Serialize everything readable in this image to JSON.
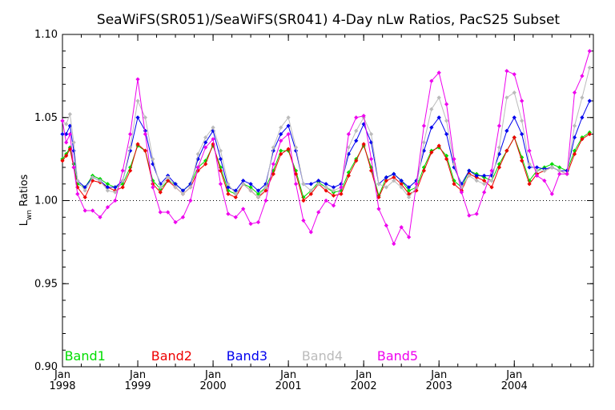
{
  "chart_data": {
    "type": "line",
    "title": "SeaWiFS(SR051)/SeaWiFS(SR041) 4-Day nLw Ratios, PacS25 Subset",
    "ylabel_main": "L",
    "ylabel_sub": "wn",
    "ylabel_rest": " Ratios",
    "xlabel": "",
    "xlim": [
      1998.0,
      2005.05
    ],
    "ylim": [
      0.9,
      1.1
    ],
    "yticks": [
      "0.90",
      "0.95",
      "1.00",
      "1.05",
      "1.10"
    ],
    "reference_line": 1.0,
    "xticks": [
      {
        "top": "Jan",
        "bottom": "1998",
        "x": 1998.0
      },
      {
        "top": "Jan",
        "bottom": "1999",
        "x": 1999.0
      },
      {
        "top": "Jan",
        "bottom": "2000",
        "x": 2000.0
      },
      {
        "top": "Jan",
        "bottom": "2001",
        "x": 2001.0
      },
      {
        "top": "Jan",
        "bottom": "2002",
        "x": 2002.0
      },
      {
        "top": "Jan",
        "bottom": "2003",
        "x": 2003.0
      },
      {
        "top": "Jan",
        "bottom": "2004",
        "x": 2004.0
      }
    ],
    "series": [
      {
        "name": "Band1",
        "color": "#00dd00",
        "dx": 1998.3,
        "dy": 0.9,
        "x": [
          1998.0,
          1998.05,
          1998.1,
          1998.15,
          1998.2,
          1998.3,
          1998.4,
          1998.5,
          1998.6,
          1998.7,
          1998.8,
          1998.9,
          1999.0,
          1999.1,
          1999.2,
          1999.3,
          1999.4,
          1999.5,
          1999.6,
          1999.7,
          1999.8,
          1999.9,
          2000.0,
          2000.1,
          2000.2,
          2000.3,
          2000.4,
          2000.5,
          2000.6,
          2000.7,
          2000.8,
          2000.9,
          2001.0,
          2001.1,
          2001.2,
          2001.3,
          2001.4,
          2001.5,
          2001.6,
          2001.7,
          2001.8,
          2001.9,
          2002.0,
          2002.1,
          2002.2,
          2002.3,
          2002.4,
          2002.5,
          2002.6,
          2002.7,
          2002.8,
          2002.9,
          2003.0,
          2003.1,
          2003.2,
          2003.3,
          2003.4,
          2003.5,
          2003.6,
          2003.7,
          2003.8,
          2003.9,
          2004.0,
          2004.1,
          2004.2,
          2004.3,
          2004.4,
          2004.5,
          2004.6,
          2004.7,
          2004.8,
          2004.9,
          2005.0
        ],
        "y": [
          1.025,
          1.028,
          1.032,
          1.022,
          1.01,
          1.008,
          1.015,
          1.013,
          1.01,
          1.008,
          1.01,
          1.02,
          1.033,
          1.03,
          1.012,
          1.007,
          1.012,
          1.01,
          1.006,
          1.01,
          1.02,
          1.024,
          1.033,
          1.02,
          1.006,
          1.004,
          1.01,
          1.008,
          1.004,
          1.008,
          1.018,
          1.03,
          1.03,
          1.018,
          1.002,
          1.006,
          1.011,
          1.008,
          1.005,
          1.006,
          1.017,
          1.025,
          1.033,
          1.02,
          1.003,
          1.014,
          1.016,
          1.012,
          1.006,
          1.008,
          1.02,
          1.03,
          1.032,
          1.027,
          1.012,
          1.008,
          1.018,
          1.016,
          1.014,
          1.012,
          1.022,
          1.03,
          1.038,
          1.026,
          1.012,
          1.018,
          1.02,
          1.022,
          1.02,
          1.018,
          1.03,
          1.038,
          1.041
        ]
      },
      {
        "name": "Band2",
        "color": "#ee0000",
        "dx": 1999.45,
        "dy": 0.9,
        "x": [
          1998.0,
          1998.05,
          1998.1,
          1998.15,
          1998.2,
          1998.3,
          1998.4,
          1998.5,
          1998.6,
          1998.7,
          1998.8,
          1998.9,
          1999.0,
          1999.1,
          1999.2,
          1999.3,
          1999.4,
          1999.5,
          1999.6,
          1999.7,
          1999.8,
          1999.9,
          2000.0,
          2000.1,
          2000.2,
          2000.3,
          2000.4,
          2000.5,
          2000.6,
          2000.7,
          2000.8,
          2000.9,
          2001.0,
          2001.1,
          2001.2,
          2001.3,
          2001.4,
          2001.5,
          2001.6,
          2001.7,
          2001.8,
          2001.9,
          2002.0,
          2002.1,
          2002.2,
          2002.3,
          2002.4,
          2002.5,
          2002.6,
          2002.7,
          2002.8,
          2002.9,
          2003.0,
          2003.1,
          2003.2,
          2003.3,
          2003.4,
          2003.5,
          2003.6,
          2003.7,
          2003.8,
          2003.9,
          2004.0,
          2004.1,
          2004.2,
          2004.3,
          2004.4,
          2004.5,
          2004.6,
          2004.7,
          2004.8,
          2004.9,
          2005.0
        ],
        "y": [
          1.024,
          1.027,
          1.031,
          1.02,
          1.008,
          1.002,
          1.012,
          1.011,
          1.008,
          1.006,
          1.008,
          1.018,
          1.034,
          1.03,
          1.01,
          1.005,
          1.012,
          1.008,
          1.004,
          1.008,
          1.018,
          1.022,
          1.034,
          1.018,
          1.004,
          1.002,
          1.01,
          1.006,
          1.002,
          1.006,
          1.016,
          1.028,
          1.031,
          1.016,
          1.0,
          1.004,
          1.01,
          1.006,
          1.003,
          1.004,
          1.015,
          1.024,
          1.034,
          1.018,
          1.002,
          1.012,
          1.014,
          1.01,
          1.004,
          1.006,
          1.018,
          1.029,
          1.033,
          1.025,
          1.01,
          1.006,
          1.016,
          1.014,
          1.012,
          1.008,
          1.02,
          1.03,
          1.038,
          1.024,
          1.01,
          1.016,
          1.018,
          1.02,
          1.018,
          1.016,
          1.028,
          1.037,
          1.04
        ]
      },
      {
        "name": "Band3",
        "color": "#0000ee",
        "dx": 2000.45,
        "dy": 0.9,
        "x": [
          1998.0,
          1998.05,
          1998.1,
          1998.15,
          1998.2,
          1998.3,
          1998.4,
          1998.5,
          1998.6,
          1998.7,
          1998.8,
          1998.9,
          1999.0,
          1999.1,
          1999.2,
          1999.3,
          1999.4,
          1999.5,
          1999.6,
          1999.7,
          1999.8,
          1999.9,
          2000.0,
          2000.1,
          2000.2,
          2000.3,
          2000.4,
          2000.5,
          2000.6,
          2000.7,
          2000.8,
          2000.9,
          2001.0,
          2001.1,
          2001.2,
          2001.3,
          2001.4,
          2001.5,
          2001.6,
          2001.7,
          2001.8,
          2001.9,
          2002.0,
          2002.1,
          2002.2,
          2002.3,
          2002.4,
          2002.5,
          2002.6,
          2002.7,
          2002.8,
          2002.9,
          2003.0,
          2003.1,
          2003.2,
          2003.3,
          2003.4,
          2003.5,
          2003.6,
          2003.7,
          2003.8,
          2003.9,
          2004.0,
          2004.1,
          2004.2,
          2004.3,
          2004.4,
          2004.5,
          2004.6,
          2004.7,
          2004.8,
          2004.9,
          2005.0
        ],
        "y": [
          1.04,
          1.04,
          1.045,
          1.03,
          1.012,
          1.008,
          1.014,
          1.012,
          1.008,
          1.008,
          1.012,
          1.03,
          1.05,
          1.042,
          1.022,
          1.01,
          1.015,
          1.01,
          1.006,
          1.01,
          1.025,
          1.035,
          1.042,
          1.025,
          1.008,
          1.006,
          1.012,
          1.01,
          1.006,
          1.01,
          1.03,
          1.04,
          1.045,
          1.03,
          1.01,
          1.01,
          1.012,
          1.01,
          1.008,
          1.01,
          1.028,
          1.036,
          1.046,
          1.035,
          1.01,
          1.014,
          1.016,
          1.012,
          1.008,
          1.012,
          1.03,
          1.044,
          1.05,
          1.04,
          1.02,
          1.01,
          1.018,
          1.015,
          1.015,
          1.015,
          1.028,
          1.042,
          1.05,
          1.04,
          1.02,
          1.02,
          1.019,
          1.02,
          1.018,
          1.018,
          1.038,
          1.05,
          1.06
        ]
      },
      {
        "name": "Band4",
        "color": "#bbbbbb",
        "dx": 2001.45,
        "dy": 0.9,
        "x": [
          1998.0,
          1998.05,
          1998.1,
          1998.15,
          1998.2,
          1998.3,
          1998.4,
          1998.5,
          1998.6,
          1998.7,
          1998.8,
          1998.9,
          1999.0,
          1999.1,
          1999.2,
          1999.3,
          1999.4,
          1999.5,
          1999.6,
          1999.7,
          1999.8,
          1999.9,
          2000.0,
          2000.1,
          2000.2,
          2000.3,
          2000.4,
          2000.5,
          2000.6,
          2000.7,
          2000.8,
          2000.9,
          2001.0,
          2001.1,
          2001.2,
          2001.3,
          2001.4,
          2001.5,
          2001.6,
          2001.7,
          2001.8,
          2001.9,
          2002.0,
          2002.1,
          2002.2,
          2002.3,
          2002.4,
          2002.5,
          2002.6,
          2002.7,
          2002.8,
          2002.9,
          2003.0,
          2003.1,
          2003.2,
          2003.3,
          2003.4,
          2003.5,
          2003.6,
          2003.7,
          2003.8,
          2003.9,
          2004.0,
          2004.1,
          2004.2,
          2004.3,
          2004.4,
          2004.5,
          2004.6,
          2004.7,
          2004.8,
          2004.9,
          2005.0
        ],
        "y": [
          1.048,
          1.046,
          1.052,
          1.035,
          1.012,
          1.006,
          1.014,
          1.012,
          1.006,
          1.005,
          1.012,
          1.032,
          1.06,
          1.05,
          1.025,
          1.008,
          1.014,
          1.008,
          1.004,
          1.008,
          1.028,
          1.038,
          1.044,
          1.03,
          1.01,
          1.004,
          1.01,
          1.006,
          1.002,
          1.008,
          1.032,
          1.044,
          1.05,
          1.032,
          1.01,
          1.006,
          1.01,
          1.008,
          1.006,
          1.008,
          1.032,
          1.042,
          1.05,
          1.04,
          1.01,
          1.008,
          1.012,
          1.008,
          1.002,
          1.008,
          1.035,
          1.055,
          1.062,
          1.048,
          1.022,
          1.008,
          1.015,
          1.012,
          1.01,
          1.012,
          1.032,
          1.062,
          1.065,
          1.048,
          1.022,
          1.018,
          1.018,
          1.02,
          1.018,
          1.016,
          1.045,
          1.062,
          1.08
        ]
      },
      {
        "name": "Band5",
        "color": "#ee00ee",
        "dx": 2002.45,
        "dy": 0.9,
        "x": [
          1998.0,
          1998.05,
          1998.1,
          1998.15,
          1998.2,
          1998.3,
          1998.4,
          1998.5,
          1998.6,
          1998.7,
          1998.8,
          1998.9,
          1999.0,
          1999.1,
          1999.2,
          1999.3,
          1999.4,
          1999.5,
          1999.6,
          1999.7,
          1999.8,
          1999.9,
          2000.0,
          2000.1,
          2000.2,
          2000.3,
          2000.4,
          2000.5,
          2000.6,
          2000.7,
          2000.8,
          2000.9,
          2001.0,
          2001.1,
          2001.2,
          2001.3,
          2001.4,
          2001.5,
          2001.6,
          2001.7,
          2001.8,
          2001.9,
          2002.0,
          2002.1,
          2002.2,
          2002.3,
          2002.4,
          2002.5,
          2002.6,
          2002.7,
          2002.8,
          2002.9,
          2003.0,
          2003.1,
          2003.2,
          2003.3,
          2003.4,
          2003.5,
          2003.6,
          2003.7,
          2003.8,
          2003.9,
          2004.0,
          2004.1,
          2004.2,
          2004.3,
          2004.4,
          2004.5,
          2004.6,
          2004.7,
          2004.8,
          2004.9,
          2005.0
        ],
        "y": [
          1.048,
          1.035,
          1.04,
          1.02,
          1.004,
          0.994,
          0.994,
          0.99,
          0.996,
          1.0,
          1.018,
          1.04,
          1.073,
          1.04,
          1.008,
          0.993,
          0.993,
          0.987,
          0.99,
          1.0,
          1.02,
          1.032,
          1.037,
          1.01,
          0.992,
          0.99,
          0.995,
          0.986,
          0.987,
          1.0,
          1.022,
          1.036,
          1.04,
          1.01,
          0.988,
          0.981,
          0.993,
          1.0,
          0.997,
          1.008,
          1.04,
          1.05,
          1.051,
          1.025,
          0.995,
          0.985,
          0.974,
          0.984,
          0.978,
          1.01,
          1.045,
          1.072,
          1.077,
          1.058,
          1.025,
          1.005,
          0.991,
          0.992,
          1.005,
          1.018,
          1.045,
          1.078,
          1.076,
          1.06,
          1.03,
          1.015,
          1.012,
          1.004,
          1.016,
          1.016,
          1.065,
          1.075,
          1.09
        ]
      }
    ]
  }
}
